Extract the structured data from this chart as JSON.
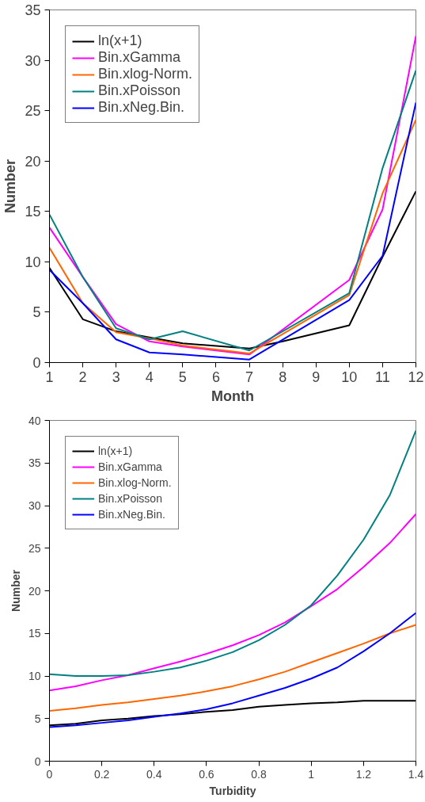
{
  "chart_data": [
    {
      "type": "line",
      "xlabel": "Month",
      "ylabel": "Number",
      "xlim": [
        1,
        12
      ],
      "ylim": [
        0,
        35
      ],
      "xticks": [
        1,
        2,
        3,
        4,
        5,
        6,
        7,
        8,
        9,
        10,
        11,
        12
      ],
      "yticks": [
        0,
        5,
        10,
        15,
        20,
        25,
        30,
        35
      ],
      "grid": false,
      "legend": "top left",
      "marker": "none",
      "series": [
        {
          "name": "ln(x+1)",
          "color": "#000000",
          "x": [
            1,
            2,
            3,
            4,
            5,
            7,
            8,
            10,
            11,
            12
          ],
          "values": [
            9.4,
            4.3,
            3.1,
            2.5,
            1.9,
            1.4,
            2.1,
            3.7,
            10.5,
            17.0
          ]
        },
        {
          "name": "Bin.xGamma",
          "color": "#ff00ff",
          "x": [
            1,
            2,
            3,
            4,
            5,
            7,
            10,
            11,
            12
          ],
          "values": [
            13.4,
            8.5,
            3.8,
            2.1,
            1.6,
            0.8,
            8.2,
            15.2,
            32.4
          ]
        },
        {
          "name": "Bin.xlog-Norm.",
          "color": "#ff6600",
          "x": [
            1,
            2,
            3,
            4,
            5,
            7,
            10,
            11,
            12
          ],
          "values": [
            11.4,
            5.9,
            3.0,
            2.4,
            1.7,
            0.9,
            6.7,
            16.8,
            24.1
          ]
        },
        {
          "name": "Bin.xPoisson",
          "color": "#008080",
          "x": [
            1,
            2,
            3,
            4,
            5,
            7,
            10,
            11,
            12
          ],
          "values": [
            14.7,
            8.5,
            3.4,
            2.3,
            3.1,
            1.2,
            6.9,
            19.3,
            29.0
          ]
        },
        {
          "name": "Bin.xNeg.Bin.",
          "color": "#0000ff",
          "x": [
            1,
            2,
            3,
            4,
            5,
            7,
            10,
            11,
            12
          ],
          "values": [
            9.2,
            5.9,
            2.3,
            1.0,
            0.8,
            0.3,
            6.2,
            10.6,
            25.8
          ]
        }
      ]
    },
    {
      "type": "line",
      "xlabel": "Turbidity",
      "ylabel": "Number",
      "xlim": [
        0,
        1.4
      ],
      "ylim": [
        0,
        40
      ],
      "xticks": [
        0,
        {
          "value": 0.2,
          "label": "0.2"
        },
        {
          "value": 0.4,
          "label": "0.4"
        },
        {
          "value": 0.6,
          "label": "0.6"
        },
        {
          "value": 0.8,
          "label": "0.8"
        },
        1,
        {
          "value": 1.2,
          "label": "1.2"
        },
        {
          "value": 1.4,
          "label": "1.4"
        }
      ],
      "yticks": [
        0,
        5,
        10,
        15,
        20,
        25,
        30,
        35,
        40
      ],
      "grid": false,
      "legend": "top left",
      "marker": "none",
      "x": [
        0,
        0.1,
        0.2,
        0.3,
        0.4,
        0.5,
        0.6,
        0.7,
        0.8,
        0.9,
        1.0,
        1.1,
        1.2,
        1.3,
        1.4
      ],
      "series": [
        {
          "name": "ln(x+1)",
          "color": "#000000",
          "values": [
            4.2,
            4.4,
            4.8,
            5.0,
            5.3,
            5.5,
            5.8,
            6.0,
            6.4,
            6.6,
            6.8,
            6.9,
            7.1,
            7.1,
            7.1
          ]
        },
        {
          "name": "Bin.xGamma",
          "color": "#ff00ff",
          "values": [
            8.3,
            8.8,
            9.5,
            10.1,
            10.9,
            11.7,
            12.6,
            13.6,
            14.8,
            16.3,
            18.2,
            20.2,
            22.8,
            25.6,
            29.0
          ]
        },
        {
          "name": "Bin.xlog-Norm.",
          "color": "#ff6600",
          "values": [
            5.9,
            6.2,
            6.6,
            6.9,
            7.3,
            7.7,
            8.2,
            8.8,
            9.6,
            10.5,
            11.6,
            12.7,
            13.8,
            15.0,
            16.0
          ]
        },
        {
          "name": "Bin.xPoisson",
          "color": "#008080",
          "values": [
            10.2,
            10.0,
            10.0,
            10.1,
            10.5,
            11.0,
            11.8,
            12.8,
            14.2,
            16.0,
            18.3,
            21.8,
            26.0,
            31.2,
            38.8
          ]
        },
        {
          "name": "Bin.xNeg.Bin.",
          "color": "#0000ff",
          "values": [
            4.0,
            4.2,
            4.5,
            4.8,
            5.2,
            5.6,
            6.1,
            6.8,
            7.7,
            8.6,
            9.7,
            11.0,
            12.9,
            15.0,
            17.4
          ]
        }
      ]
    }
  ]
}
